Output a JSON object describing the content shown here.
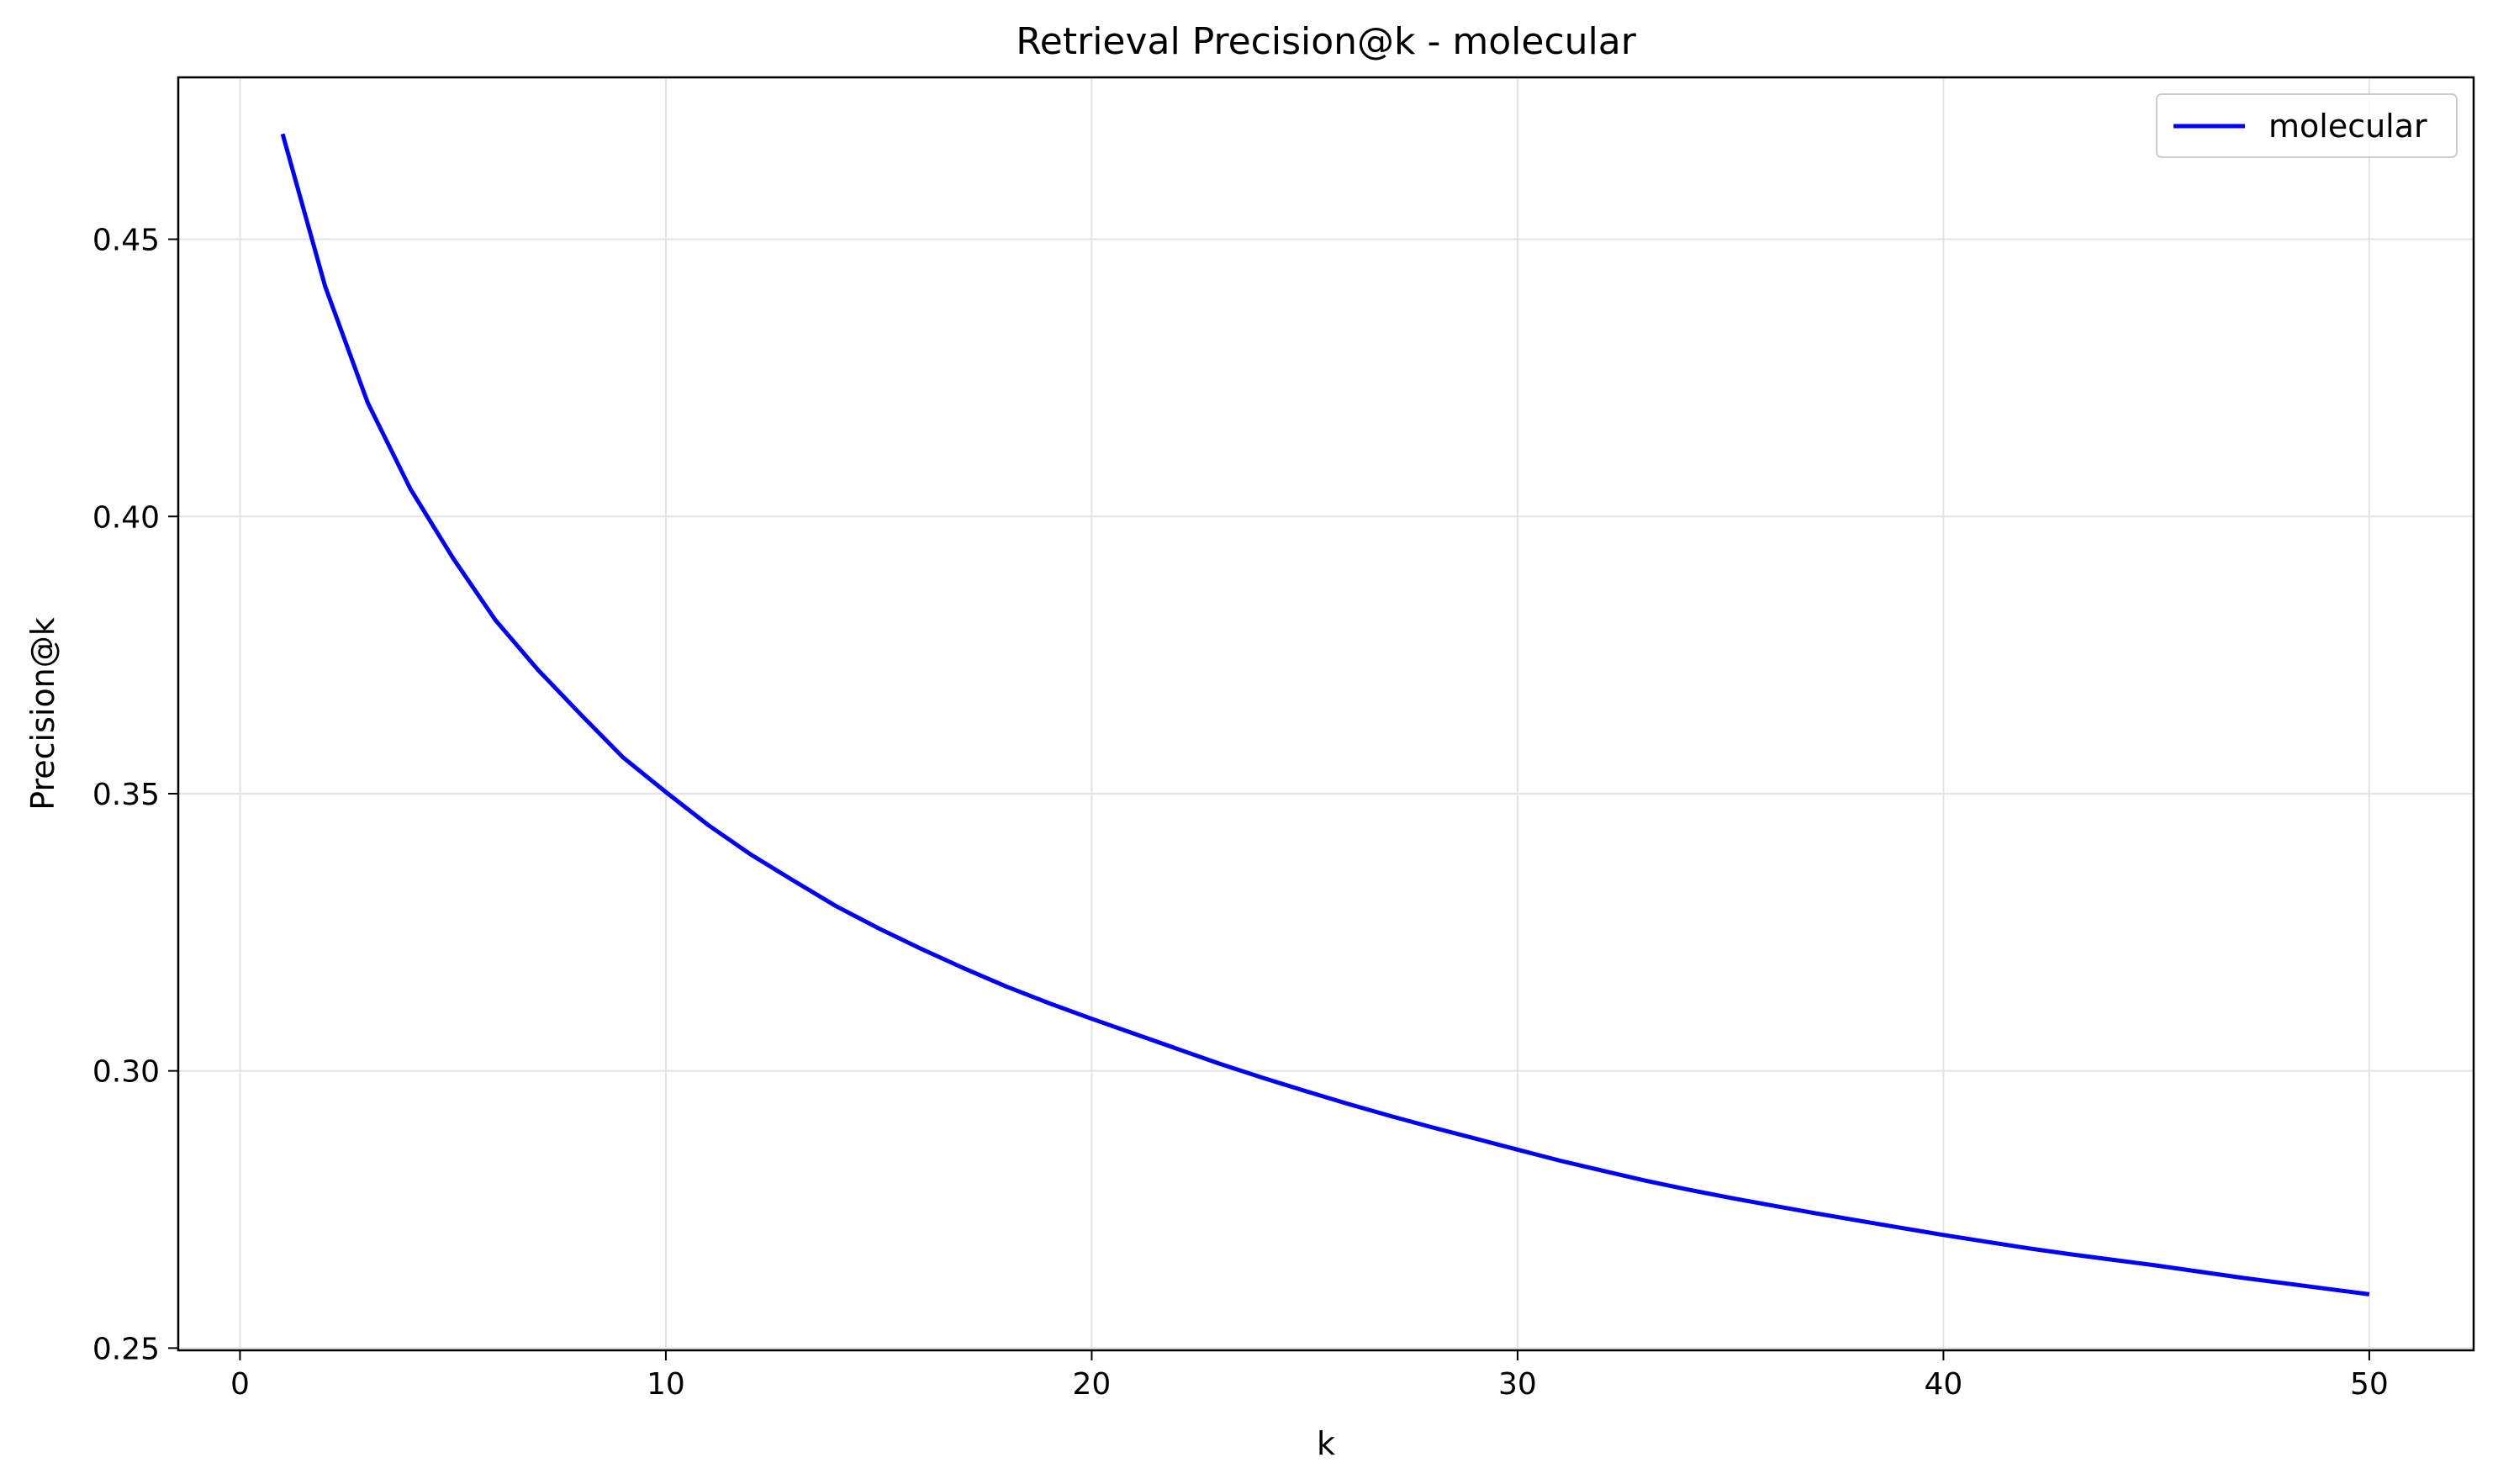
{
  "chart_data": {
    "type": "line",
    "title": "Retrieval Precision@k - molecular",
    "xlabel": "k",
    "ylabel": "Precision@k",
    "xlim": [
      -1.45,
      52.45
    ],
    "ylim": [
      0.2496,
      0.4792
    ],
    "xticks": [
      0,
      10,
      20,
      30,
      40,
      50
    ],
    "xtick_labels": [
      "0",
      "10",
      "20",
      "30",
      "40",
      "50"
    ],
    "yticks": [
      0.25,
      0.3,
      0.35,
      0.4,
      0.45
    ],
    "ytick_labels": [
      "0.25",
      "0.30",
      "0.35",
      "0.40",
      "0.45"
    ],
    "grid": true,
    "legend": {
      "position": "top-right"
    },
    "series": [
      {
        "name": "molecular",
        "color": "#0000ff",
        "x": [
          1,
          2,
          3,
          4,
          5,
          6,
          7,
          8,
          9,
          10,
          11,
          12,
          13,
          14,
          15,
          16,
          17,
          18,
          19,
          20,
          21,
          22,
          23,
          24,
          25,
          26,
          27,
          28,
          29,
          30,
          31,
          32,
          33,
          34,
          35,
          36,
          37,
          38,
          39,
          40,
          41,
          42,
          43,
          44,
          45,
          46,
          47,
          48,
          49,
          50
        ],
        "y": [
          0.469,
          0.4415,
          0.4205,
          0.405,
          0.3925,
          0.3813,
          0.3723,
          0.3643,
          0.3565,
          0.3503,
          0.3443,
          0.339,
          0.3343,
          0.3297,
          0.3257,
          0.322,
          0.3185,
          0.3152,
          0.3122,
          0.3094,
          0.3067,
          0.304,
          0.3013,
          0.2988,
          0.2964,
          0.2941,
          0.2919,
          0.2898,
          0.2878,
          0.2858,
          0.2838,
          0.282,
          0.2802,
          0.2786,
          0.2771,
          0.2757,
          0.2743,
          0.273,
          0.2717,
          0.2704,
          0.2692,
          0.268,
          0.2669,
          0.2659,
          0.2649,
          0.2638,
          0.2627,
          0.2617,
          0.2607,
          0.2597
        ]
      }
    ]
  }
}
